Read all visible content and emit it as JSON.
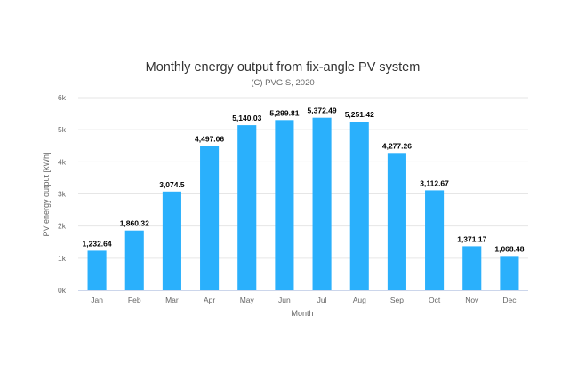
{
  "chart_data": {
    "type": "bar",
    "title": "Monthly energy output from fix-angle PV system",
    "subtitle": "(C) PVGIS, 2020",
    "xlabel": "Month",
    "ylabel": "PV energy output [kWh]",
    "categories": [
      "Jan",
      "Feb",
      "Mar",
      "Apr",
      "May",
      "Jun",
      "Jul",
      "Aug",
      "Sep",
      "Oct",
      "Nov",
      "Dec"
    ],
    "values": [
      1232.64,
      1860.32,
      3074.5,
      4497.06,
      5140.03,
      5299.81,
      5372.49,
      5251.42,
      4277.26,
      3112.67,
      1371.17,
      1068.48
    ],
    "data_labels": [
      "1,232.64",
      "1,860.32",
      "3,074.5",
      "4,497.06",
      "5,140.03",
      "5,299.81",
      "5,372.49",
      "5,251.42",
      "4,277.26",
      "3,112.67",
      "1,371.17",
      "1,068.48"
    ],
    "ylim": [
      0,
      6000
    ],
    "yticks": [
      0,
      1000,
      2000,
      3000,
      4000,
      5000,
      6000
    ],
    "ytick_labels": [
      "0k",
      "1k",
      "2k",
      "3k",
      "4k",
      "5k",
      "6k"
    ],
    "grid": true,
    "legend": "none",
    "bar_color": "#2ab0fc"
  }
}
